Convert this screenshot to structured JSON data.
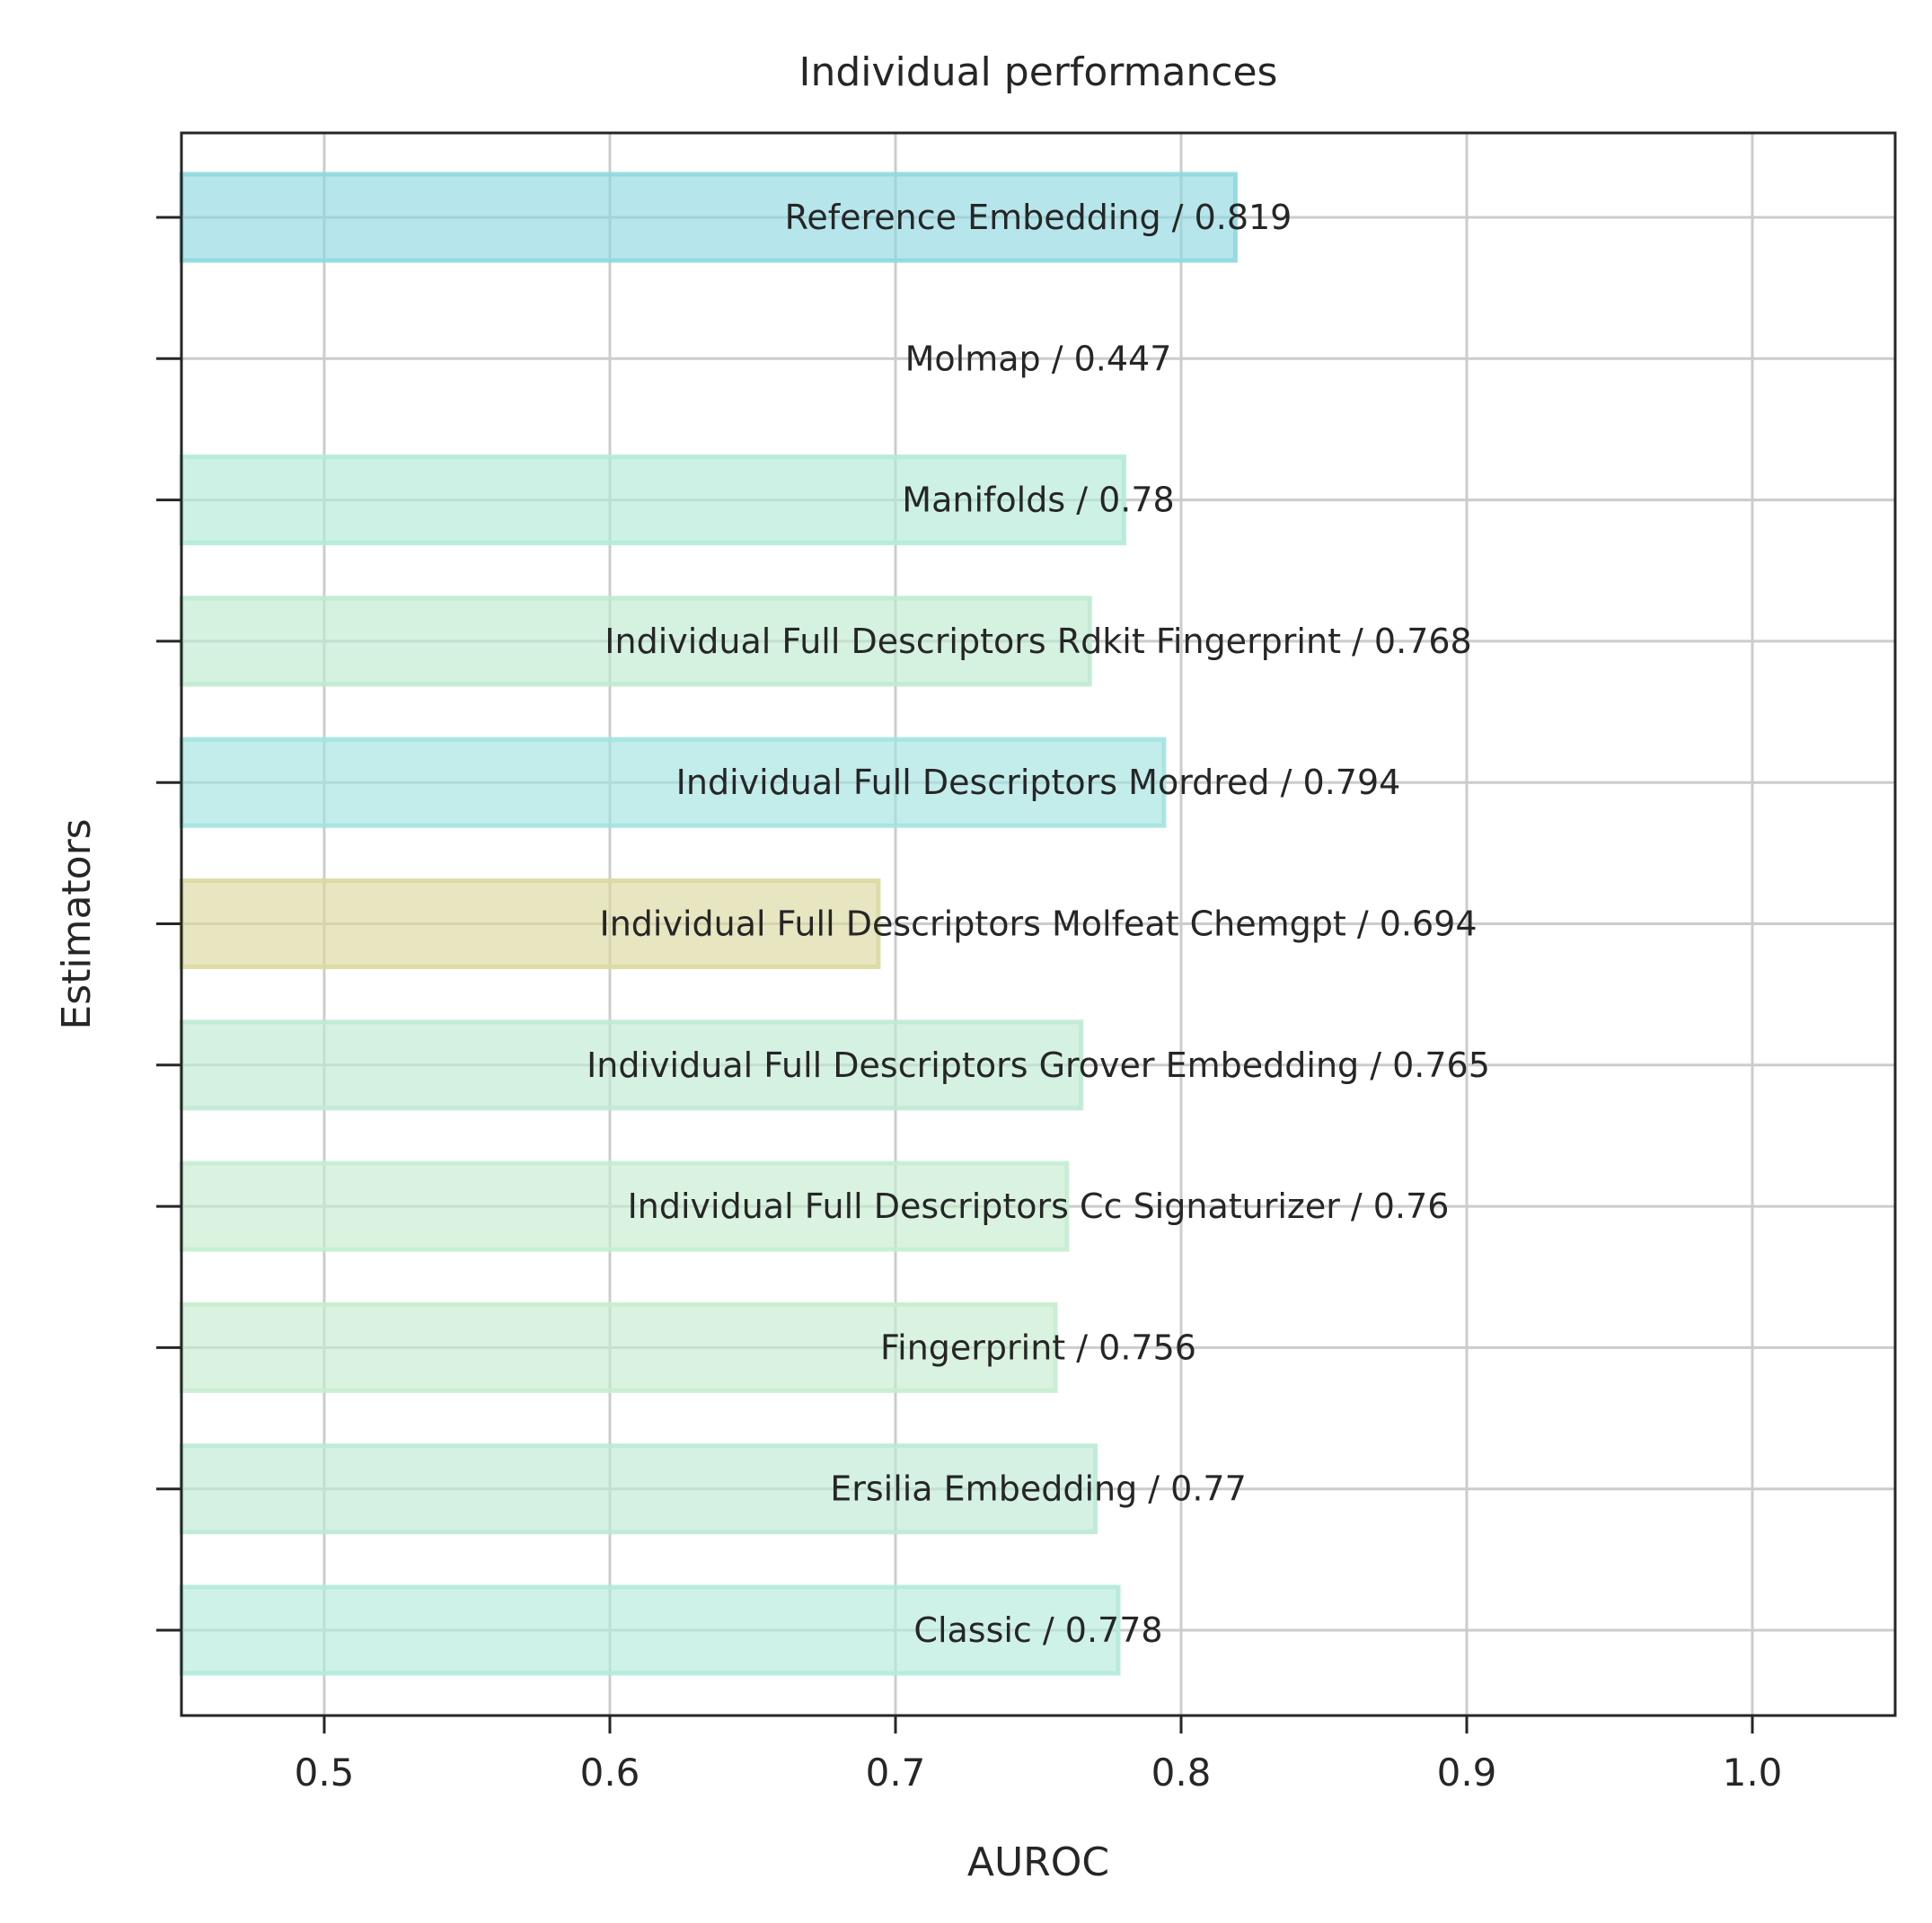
{
  "chart_data": {
    "type": "bar",
    "orientation": "horizontal",
    "title": "Individual performances",
    "xlabel": "AUROC",
    "ylabel": "Estimators",
    "xlim": [
      0.45,
      1.05
    ],
    "xticks": [
      0.5,
      0.6,
      0.7,
      0.8,
      0.9,
      1.0
    ],
    "xtick_labels": [
      "0.5",
      "0.6",
      "0.7",
      "0.8",
      "0.9",
      "1.0"
    ],
    "grid": true,
    "bars": [
      {
        "name": "Reference Embedding",
        "value": 0.819,
        "label": "Reference Embedding / 0.819",
        "color": "#8fd8e0"
      },
      {
        "name": "Molmap",
        "value": 0.447,
        "label": "Molmap / 0.447",
        "color": "#c9a6d8"
      },
      {
        "name": "Manifolds",
        "value": 0.78,
        "label": "Manifolds / 0.78",
        "color": "#b3ead9"
      },
      {
        "name": "Individual Full Descriptors Rdkit Fingerprint",
        "value": 0.768,
        "label": "Individual Full Descriptors Rdkit Fingerprint / 0.768",
        "color": "#bfead0"
      },
      {
        "name": "Individual Full Descriptors Mordred",
        "value": 0.794,
        "label": "Individual Full Descriptors Mordred / 0.794",
        "color": "#a3e3e0"
      },
      {
        "name": "Individual Full Descriptors Molfeat Chemgpt",
        "value": 0.694,
        "label": "Individual Full Descriptors Molfeat Chemgpt / 0.694",
        "color": "#dcd9a0"
      },
      {
        "name": "Individual Full Descriptors Grover Embedding",
        "value": 0.765,
        "label": "Individual Full Descriptors Grover Embedding / 0.765",
        "color": "#bfead2"
      },
      {
        "name": "Individual Full Descriptors Cc Signaturizer",
        "value": 0.76,
        "label": "Individual Full Descriptors Cc Signaturizer / 0.76",
        "color": "#c4edd0"
      },
      {
        "name": "Fingerprint",
        "value": 0.756,
        "label": "Fingerprint / 0.756",
        "color": "#c6edcf"
      },
      {
        "name": "Ersilia Embedding",
        "value": 0.77,
        "label": "Ersilia Embedding / 0.77",
        "color": "#bdead4"
      },
      {
        "name": "Classic",
        "value": 0.778,
        "label": "Classic / 0.778",
        "color": "#b3eadb"
      }
    ]
  }
}
